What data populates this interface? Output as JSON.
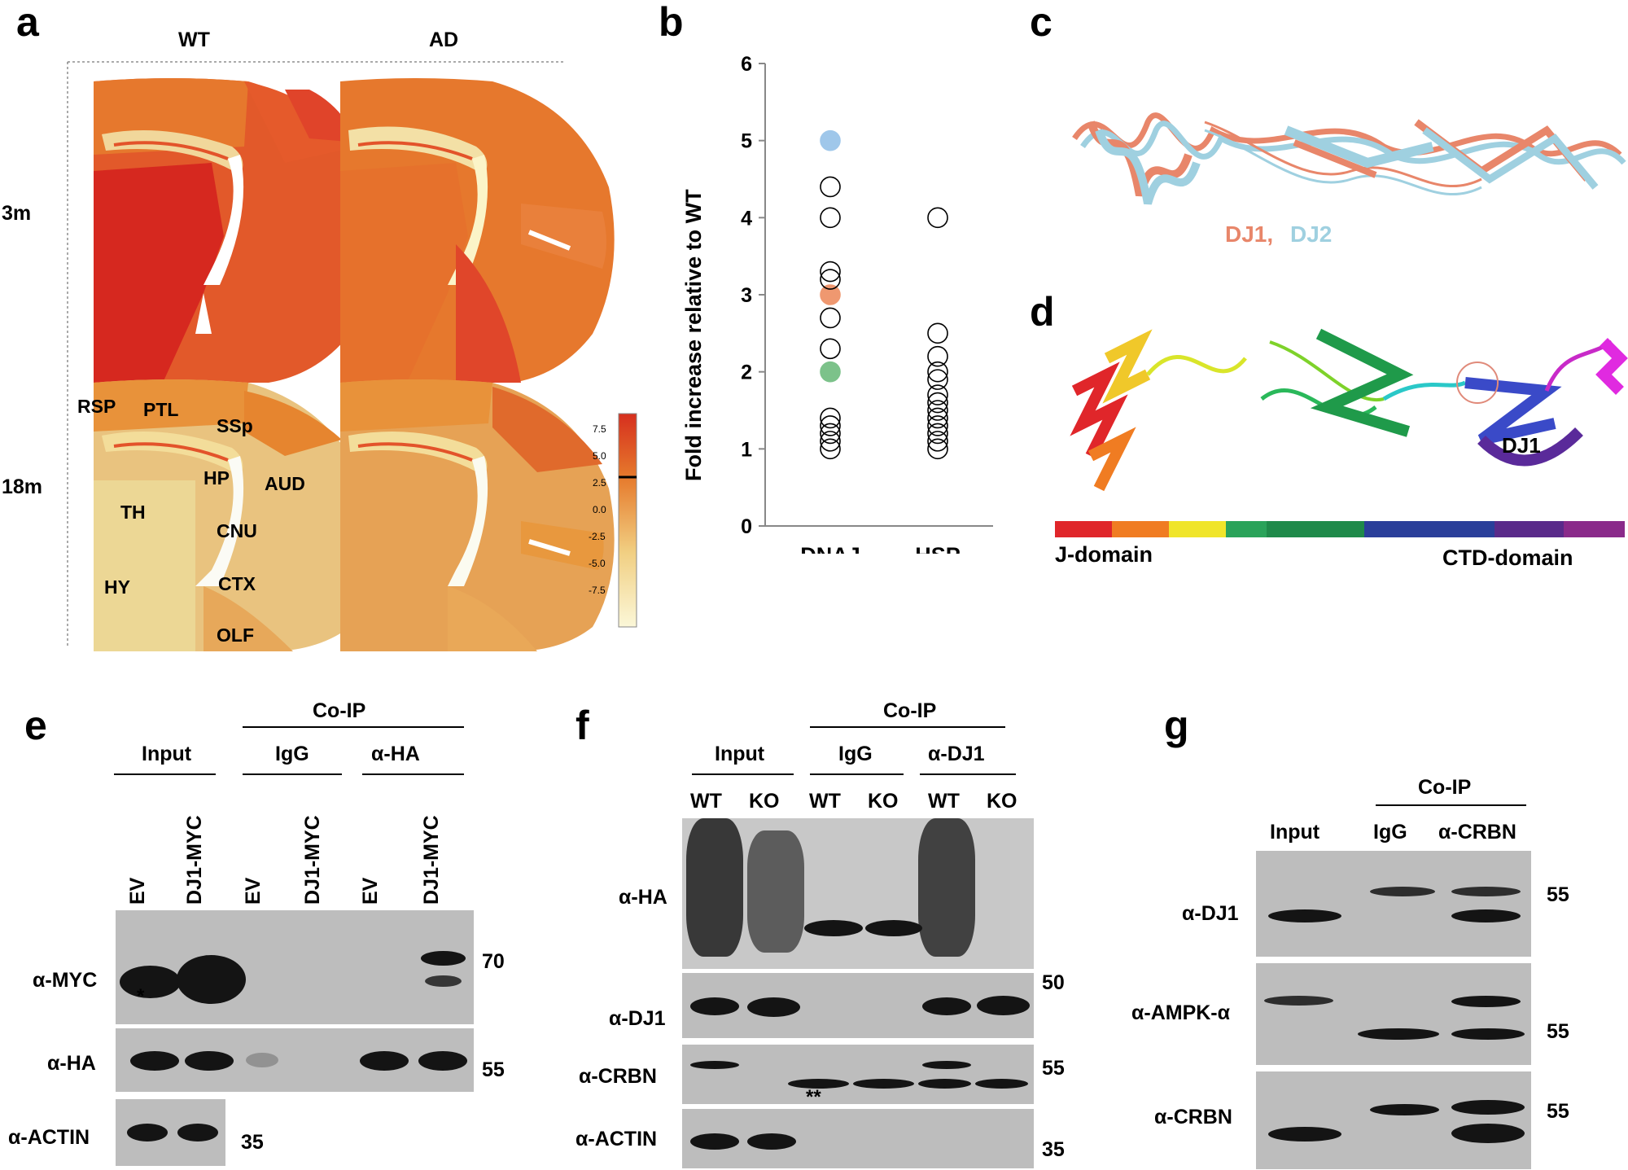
{
  "panels": {
    "a": "a",
    "b": "b",
    "c": "c",
    "d": "d",
    "e": "e",
    "f": "f",
    "g": "g"
  },
  "panel_a": {
    "col_labels": [
      "WT",
      "AD"
    ],
    "row_labels": [
      "3m",
      "18m"
    ],
    "regions": [
      "RSP",
      "PTL",
      "SSp",
      "HP",
      "AUD",
      "TH",
      "CNU",
      "HY",
      "CTX",
      "OLF"
    ],
    "colorbar_ticks": [
      "7.5",
      "5.0",
      "2.5",
      "0.0",
      "-2.5",
      "-5.0",
      "-7.5"
    ],
    "colorbar_colors": [
      "#d62f1e",
      "#e67a2c",
      "#f1cf82",
      "#fbf7d8"
    ]
  },
  "chart_data": {
    "type": "scatter",
    "ylabel": "Fold increase relative to WT",
    "xlabel": "",
    "categories": [
      "DNAJ",
      "HSP"
    ],
    "ylim": [
      0,
      6
    ],
    "yticks": [
      "0",
      "1",
      "2",
      "3",
      "4",
      "5",
      "6"
    ],
    "series": [
      {
        "name": "DNAJ",
        "values": [
          1.0,
          1.1,
          1.2,
          1.3,
          1.4,
          2.0,
          2.3,
          2.7,
          3.0,
          3.2,
          3.3,
          4.0,
          4.4,
          5.0
        ],
        "highlight": {
          "5.0": "#9fc7ea",
          "3.0": "#ef9870",
          "2.0": "#7cc28a"
        }
      },
      {
        "name": "HSP",
        "values": [
          1.0,
          1.1,
          1.2,
          1.3,
          1.4,
          1.5,
          1.6,
          1.7,
          1.9,
          2.0,
          2.2,
          2.5,
          4.0
        ]
      }
    ]
  },
  "panel_c": {
    "legend_dj1": "DJ1,",
    "legend_dj2": "DJ2",
    "dj1_color": "#e8866a",
    "dj2_color": "#9fd0e0"
  },
  "panel_d": {
    "protein_label": "DJ1",
    "domain_left": "J-domain",
    "domain_right": "CTD-domain",
    "bar_colors": [
      "#e0262a",
      "#f07c22",
      "#f0e52a",
      "#2aa35a",
      "#1f8a4a",
      "#2a3f9a",
      "#5a2a8a",
      "#8a2a8a"
    ]
  },
  "panel_e": {
    "header": "Co-IP",
    "groups": [
      "Input",
      "IgG",
      "α-HA"
    ],
    "lanes": [
      "EV",
      "DJ1-MYC",
      "EV",
      "DJ1-MYC",
      "EV",
      "DJ1-MYC"
    ],
    "blots": [
      "α-MYC",
      "α-HA",
      "α-ACTIN"
    ],
    "mw": [
      "70",
      "55",
      "35"
    ],
    "asterisk": "*"
  },
  "panel_f": {
    "header": "Co-IP",
    "groups": [
      "Input",
      "IgG",
      "α-DJ1"
    ],
    "lanes": [
      "WT",
      "KO",
      "WT",
      "KO",
      "WT",
      "KO"
    ],
    "blots": [
      "α-HA",
      "α-DJ1",
      "α-CRBN",
      "α-ACTIN"
    ],
    "mw": [
      "50",
      "55",
      "35"
    ],
    "asterisk": "**"
  },
  "panel_g": {
    "header": "Co-IP",
    "lanes": [
      "Input",
      "IgG",
      "α-CRBN"
    ],
    "blots": [
      "α-DJ1",
      "α-AMPK-α",
      "α-CRBN"
    ],
    "mw": [
      "55",
      "55",
      "55"
    ]
  }
}
